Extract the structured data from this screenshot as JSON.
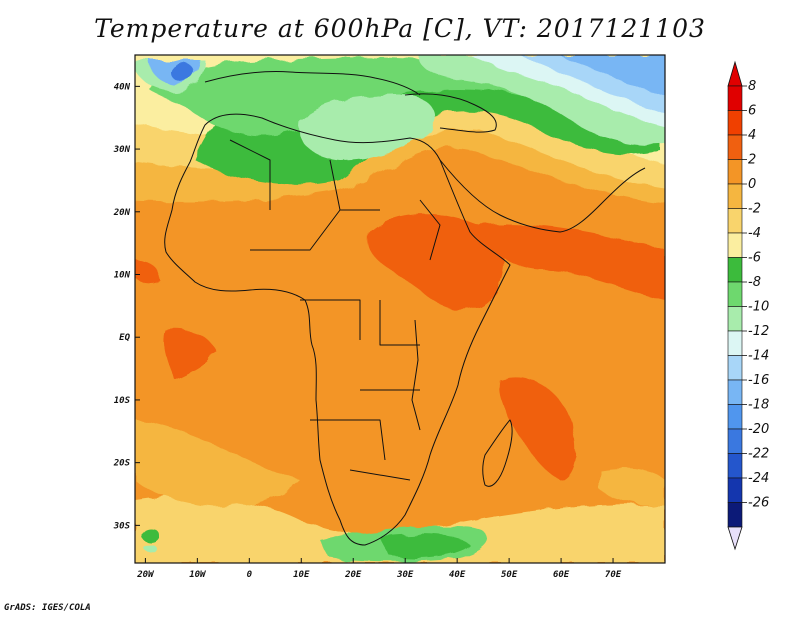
{
  "title": "Temperature at 600hPa [C], VT: 2017121103",
  "credit": "GrADS: IGES/COLA",
  "map": {
    "projection": "lat-lon",
    "lon_range": [
      -22,
      80
    ],
    "lat_range": [
      -36,
      45
    ],
    "lon_ticks": [
      {
        "value": -20,
        "label": "20W"
      },
      {
        "value": -10,
        "label": "10W"
      },
      {
        "value": 0,
        "label": "0"
      },
      {
        "value": 10,
        "label": "10E"
      },
      {
        "value": 20,
        "label": "20E"
      },
      {
        "value": 30,
        "label": "30E"
      },
      {
        "value": 40,
        "label": "40E"
      },
      {
        "value": 50,
        "label": "50E"
      },
      {
        "value": 60,
        "label": "60E"
      },
      {
        "value": 70,
        "label": "70E"
      }
    ],
    "lat_ticks": [
      {
        "value": 40,
        "label": "40N"
      },
      {
        "value": 30,
        "label": "30N"
      },
      {
        "value": 20,
        "label": "20N"
      },
      {
        "value": 10,
        "label": "10N"
      },
      {
        "value": 0,
        "label": "EQ"
      },
      {
        "value": -10,
        "label": "10S"
      },
      {
        "value": -20,
        "label": "20S"
      },
      {
        "value": -30,
        "label": "30S"
      }
    ]
  },
  "colorbar": {
    "levels": [
      {
        "label": "8",
        "color": "#e00000"
      },
      {
        "label": "6",
        "color": "#f04000"
      },
      {
        "label": "4",
        "color": "#f06010"
      },
      {
        "label": "2",
        "color": "#f39526"
      },
      {
        "label": "0",
        "color": "#f5b640"
      },
      {
        "label": "-2",
        "color": "#f9d46c"
      },
      {
        "label": "-4",
        "color": "#fbeea0"
      },
      {
        "label": "-6",
        "color": "#3cbb3c"
      },
      {
        "label": "-8",
        "color": "#6ed86e"
      },
      {
        "label": "-10",
        "color": "#a8ecac"
      },
      {
        "label": "-12",
        "color": "#dcf6f4"
      },
      {
        "label": "-14",
        "color": "#a8d6f8"
      },
      {
        "label": "-16",
        "color": "#78b6f4"
      },
      {
        "label": "-18",
        "color": "#5096ee"
      },
      {
        "label": "-20",
        "color": "#3a78e0"
      },
      {
        "label": "-22",
        "color": "#2456cc"
      },
      {
        "label": "-24",
        "color": "#1436ae"
      },
      {
        "label": "-26",
        "color": "#0c1a78"
      }
    ],
    "over_color": "#e00000",
    "under_color": "#e8e0fa"
  }
}
